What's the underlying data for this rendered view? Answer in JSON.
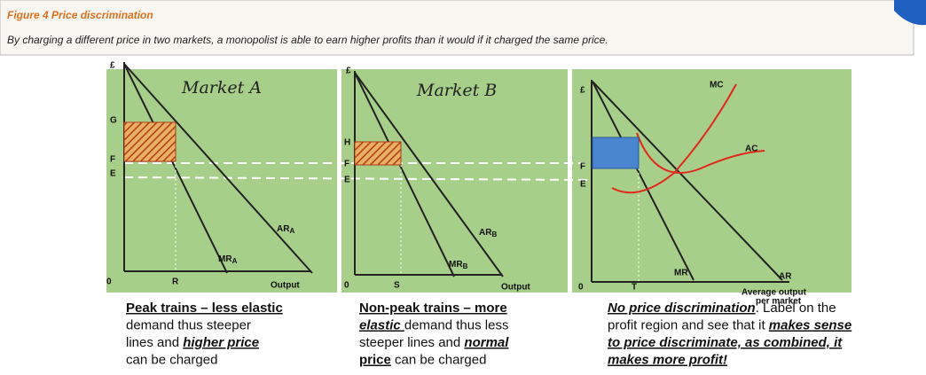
{
  "header": {
    "title": "Figure 4 Price discrimination",
    "subtitle": "By charging a different price in two markets, a monopolist is able to earn higher profits than it would if it charged the same price."
  },
  "panels": [
    {
      "heading": "Market A",
      "y_axis": "£",
      "price_high": "G",
      "price_f": "F",
      "price_e": "E",
      "origin": "0",
      "quantity": "R",
      "x_axis": "Output",
      "ar": {
        "main": "AR",
        "sub": "A"
      },
      "mr": {
        "main": "MR",
        "sub": "A"
      }
    },
    {
      "heading": "Market B",
      "y_axis": "£",
      "price_high": "H",
      "price_f": "F",
      "price_e": "E",
      "origin": "0",
      "quantity": "S",
      "x_axis": "Output",
      "ar": {
        "main": "AR",
        "sub": "B"
      },
      "mr": {
        "main": "MR",
        "sub": "B"
      }
    },
    {
      "y_axis": "£",
      "mc": "MC",
      "ac": "AC",
      "price_f": "F",
      "price_e": "E",
      "origin": "0",
      "quantity": "T",
      "mr": "MR",
      "ar": "AR",
      "x_axis_1": "Average output",
      "x_axis_2": "per market"
    }
  ],
  "captions": [
    {
      "lines": [
        [
          {
            "text": "Peak trains – less elastic",
            "bold": true,
            "underline": true
          }
        ],
        [
          {
            "text": "demand thus steeper"
          }
        ],
        [
          {
            "text": "lines and "
          },
          {
            "text": "higher price",
            "bold": true,
            "underline": true,
            "italic": true
          }
        ],
        [
          {
            "text": "can be charged"
          }
        ]
      ]
    },
    {
      "lines": [
        [
          {
            "text": "Non-peak trains – more",
            "bold": true,
            "underline": true
          }
        ],
        [
          {
            "text": "elastic ",
            "bold": true,
            "underline": true,
            "italic": true
          },
          {
            "text": "demand thus less"
          }
        ],
        [
          {
            "text": "steeper lines and "
          },
          {
            "text": "normal",
            "bold": true,
            "underline": true,
            "italic": true
          }
        ],
        [
          {
            "text": "price",
            "bold": true,
            "underline": true
          },
          {
            "text": " can be charged"
          }
        ]
      ]
    },
    {
      "lines": [
        [
          {
            "text": "No price discrimination",
            "bold": true,
            "underline": true,
            "italic": true
          },
          {
            "text": ". Label on the"
          }
        ],
        [
          {
            "text": "profit region and see that it "
          },
          {
            "text": "makes sense",
            "bold": true,
            "underline": true,
            "italic": true
          }
        ],
        [
          {
            "text": "to price discriminate, as combined, it",
            "bold": true,
            "underline": true,
            "italic": true
          }
        ],
        [
          {
            "text": "makes more profit!",
            "bold": true,
            "underline": true,
            "italic": true
          }
        ]
      ]
    }
  ]
}
